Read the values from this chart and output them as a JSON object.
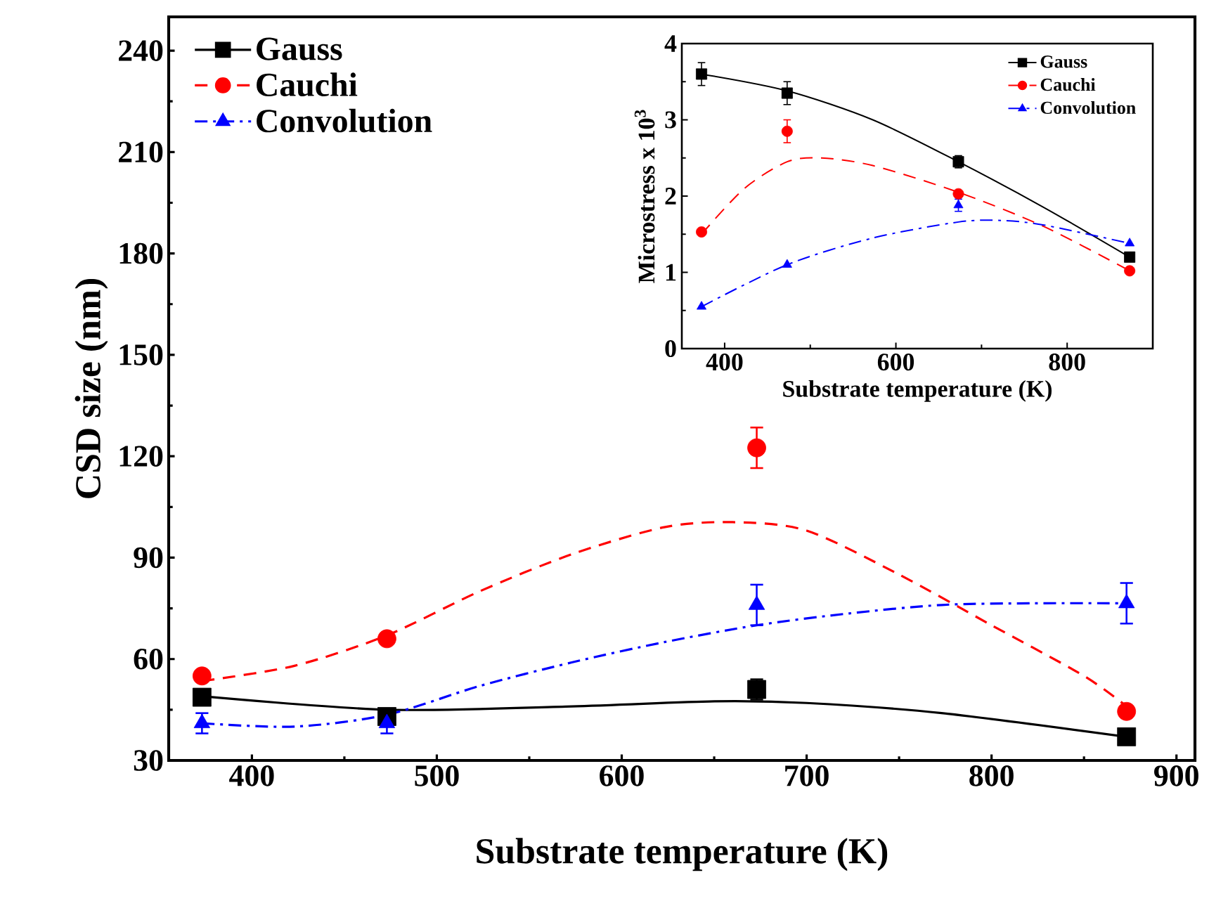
{
  "chart_data": [
    {
      "type": "scatter",
      "xlabel": "Substrate temperature (K)",
      "ylabel": "CSD size (nm)",
      "xlim": [
        355,
        910
      ],
      "ylim": [
        30,
        250
      ],
      "xticks": [
        400,
        500,
        600,
        700,
        800,
        900
      ],
      "yticks": [
        30,
        60,
        90,
        120,
        150,
        180,
        210,
        240
      ],
      "legend": "top left",
      "series": [
        {
          "name": "Gauss",
          "color": "#000000",
          "marker": "square",
          "line_style": "solid",
          "x": [
            373,
            473,
            673,
            873
          ],
          "values": [
            48.7,
            43,
            51,
            37
          ],
          "errors": [
            null,
            null,
            3,
            null
          ]
        },
        {
          "name": "Cauchi",
          "color": "#ff0000",
          "marker": "circle",
          "line_style": "dashed",
          "x": [
            373,
            473,
            673,
            873
          ],
          "values": [
            55,
            66,
            122.5,
            44.5
          ],
          "errors": [
            null,
            null,
            6,
            null
          ]
        },
        {
          "name": "Convolution",
          "color": "#0000ff",
          "marker": "triangle",
          "line_style": "dashdot",
          "x": [
            373,
            473,
            673,
            873
          ],
          "values": [
            41,
            41,
            76,
            76.5
          ],
          "errors": [
            3,
            3,
            6,
            6
          ]
        },
        {
          "type": "line",
          "color": "#000000",
          "line_style": "solid",
          "x": [
            373,
            473,
            573,
            650,
            700,
            773,
            873
          ],
          "values": [
            49,
            45,
            46,
            47.5,
            47,
            44,
            37
          ]
        },
        {
          "type": "line",
          "color": "#ff0000",
          "line_style": "dashed",
          "x": [
            373,
            423,
            473,
            523,
            573,
            623,
            660,
            700,
            750,
            800,
            850,
            873
          ],
          "values": [
            53.5,
            58,
            67,
            80,
            91,
            99,
            100.5,
            98,
            85,
            70,
            55,
            46
          ]
        },
        {
          "type": "line",
          "color": "#0000ff",
          "line_style": "dashdot",
          "x": [
            373,
            423,
            473,
            523,
            573,
            623,
            673,
            723,
            773,
            823,
            873
          ],
          "values": [
            41,
            40,
            43.5,
            52,
            59,
            65,
            70,
            73.5,
            76,
            76.5,
            76.5
          ]
        }
      ]
    },
    {
      "type": "scatter",
      "xlabel": "Substrate temperature (K)",
      "ylabel": "Microstress x 10$^{3}$",
      "xlim": [
        350,
        900
      ],
      "ylim": [
        0,
        4
      ],
      "xticks": [
        400,
        600,
        800
      ],
      "yticks": [
        0,
        1,
        2,
        3,
        4
      ],
      "legend": "top right",
      "series": [
        {
          "name": "Gauss",
          "color": "#000000",
          "marker": "square",
          "line_style": "solid",
          "x": [
            373,
            473,
            673,
            873
          ],
          "values": [
            3.6,
            3.35,
            2.45,
            1.2
          ],
          "errors": [
            0.15,
            0.15,
            0.08,
            null
          ]
        },
        {
          "name": "Cauchi",
          "color": "#ff0000",
          "marker": "circle",
          "line_style": "dashed",
          "x": [
            373,
            473,
            673,
            873
          ],
          "values": [
            1.53,
            2.85,
            2.03,
            1.02
          ],
          "errors": [
            null,
            0.15,
            null,
            null
          ]
        },
        {
          "name": "Convolution",
          "color": "#0000ff",
          "marker": "triangle",
          "line_style": "dashdot",
          "x": [
            373,
            473,
            673,
            873
          ],
          "values": [
            0.55,
            1.1,
            1.88,
            1.38
          ],
          "errors": [
            null,
            null,
            0.08,
            null
          ]
        },
        {
          "type": "line",
          "color": "#000000",
          "line_style": "solid",
          "x": [
            373,
            473,
            573,
            673,
            773,
            873
          ],
          "values": [
            3.6,
            3.38,
            3.0,
            2.45,
            1.85,
            1.2
          ]
        },
        {
          "type": "line",
          "color": "#ff0000",
          "line_style": "dashed",
          "x": [
            373,
            423,
            473,
            513,
            573,
            673,
            773,
            873
          ],
          "values": [
            1.5,
            2.1,
            2.45,
            2.5,
            2.4,
            2.05,
            1.6,
            1.02
          ]
        },
        {
          "type": "line",
          "color": "#0000ff",
          "line_style": "dashdot",
          "x": [
            373,
            473,
            573,
            673,
            723,
            773,
            873
          ],
          "values": [
            0.55,
            1.1,
            1.45,
            1.66,
            1.68,
            1.62,
            1.38
          ]
        }
      ]
    }
  ]
}
